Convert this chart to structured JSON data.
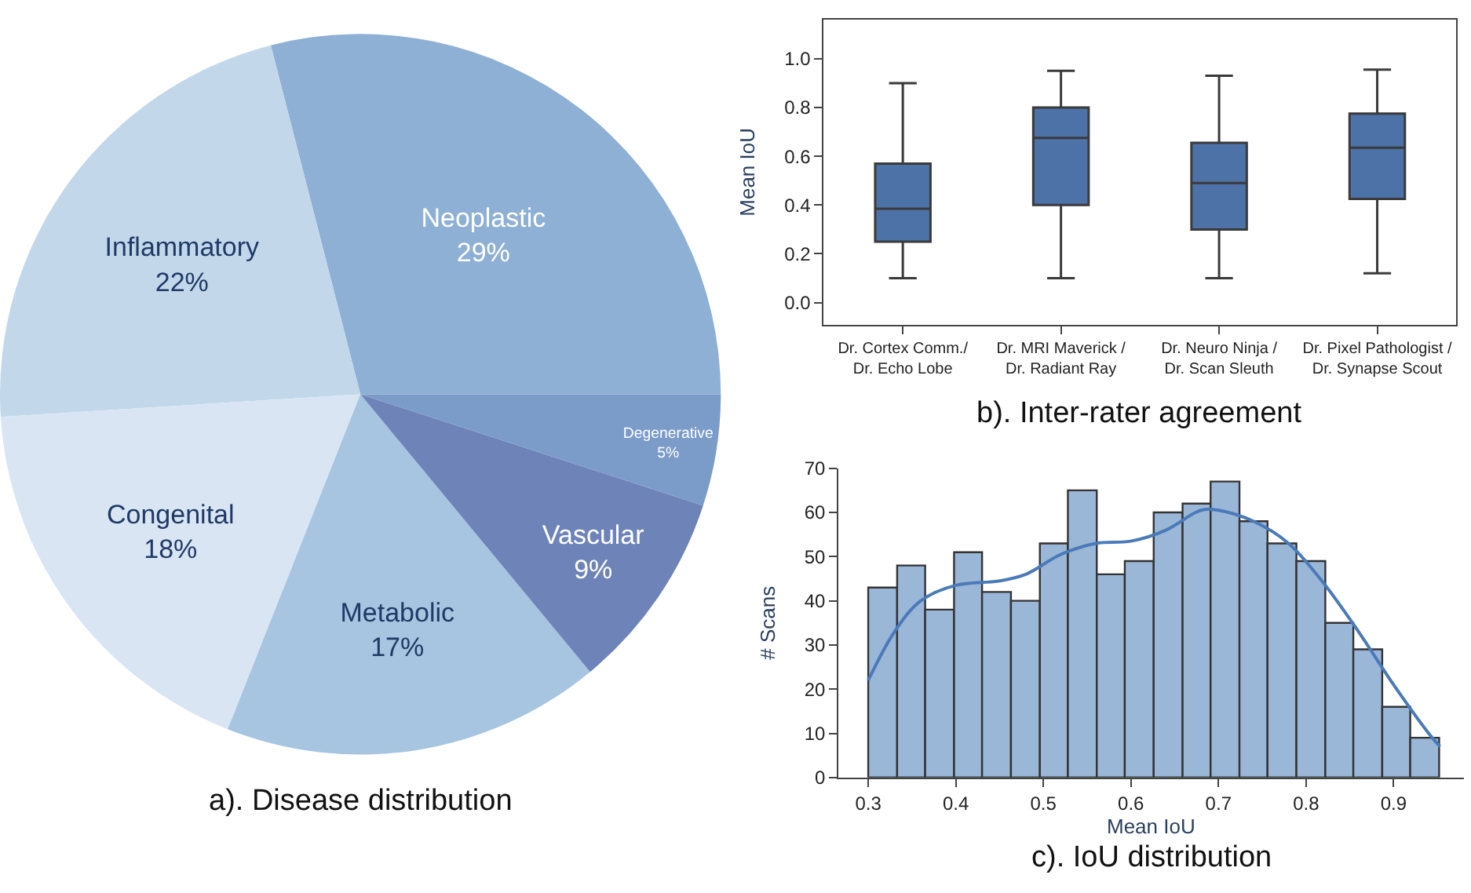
{
  "chart_data": [
    {
      "type": "pie",
      "title": "a). Disease distribution",
      "categories": [
        "Neoplastic",
        "Inflammatory",
        "Congenital",
        "Metabolic",
        "Vascular",
        "Degenerative"
      ],
      "values": [
        29,
        22,
        18,
        17,
        9,
        5
      ],
      "value_labels": [
        "29%",
        "22%",
        "18%",
        "17%",
        "9%",
        "5%"
      ],
      "colors": [
        "#8fb0d5",
        "#c2d8ea",
        "#d9e5f3",
        "#a7c4e0",
        "#6e84b8",
        "#7b9bc9"
      ]
    },
    {
      "type": "box",
      "title": "b). Inter-rater agreement",
      "ylabel": "Mean IoU",
      "categories": [
        "Dr. Cortex Comm./\nDr. Echo Lobe",
        "Dr. MRI Maverick /\nDr. Radiant Ray",
        "Dr. Neuro Ninja /\nDr. Scan Sleuth",
        "Dr. Pixel Pathologist /\nDr. Synapse Scout"
      ],
      "color": "#4c72a8",
      "boxes": [
        {
          "low": 0.1,
          "q1": 0.25,
          "median": 0.385,
          "q3": 0.57,
          "high": 0.9
        },
        {
          "low": 0.1,
          "q1": 0.4,
          "median": 0.675,
          "q3": 0.8,
          "high": 0.95
        },
        {
          "low": 0.1,
          "q1": 0.3,
          "median": 0.49,
          "q3": 0.655,
          "high": 0.93
        },
        {
          "low": 0.12,
          "q1": 0.425,
          "median": 0.635,
          "q3": 0.775,
          "high": 0.955
        }
      ],
      "ylim": [
        -0.09,
        1.16
      ],
      "yticks": [
        {
          "value": 0,
          "label": "0.0"
        },
        0.2,
        0.4,
        0.6,
        0.8,
        {
          "value": 1,
          "label": "1.0"
        }
      ]
    },
    {
      "type": "histogram",
      "title": "c). IoU distribution",
      "xlabel": "Mean IoU",
      "ylabel": "# Scans",
      "color": "#9ab7d8",
      "bins": [
        0.3,
        0.333,
        0.365,
        0.398,
        0.43,
        0.463,
        0.496,
        0.528,
        0.561,
        0.593,
        0.626,
        0.659,
        0.691,
        0.724,
        0.756,
        0.789,
        0.822,
        0.854,
        0.887,
        0.919,
        0.952
      ],
      "values": [
        43,
        48,
        38,
        51,
        42,
        40,
        53,
        65,
        46,
        49,
        60,
        62,
        67,
        58,
        53,
        49,
        35,
        29,
        16,
        9
      ],
      "series": [
        {
          "type": "line",
          "color": "#4a7ab8",
          "x": [
            0.3,
            0.33,
            0.36,
            0.4,
            0.45,
            0.48,
            0.52,
            0.56,
            0.6,
            0.64,
            0.68,
            0.7,
            0.74,
            0.78,
            0.82,
            0.86,
            0.9,
            0.94,
            0.953
          ],
          "values": [
            22,
            33,
            40,
            43.5,
            44.5,
            46,
            50.5,
            53,
            53.5,
            56,
            60.5,
            60.5,
            58,
            53,
            44,
            33,
            21,
            10,
            7
          ]
        }
      ],
      "xlim": [
        0.266,
        0.98
      ],
      "xticks": [
        0.3,
        0.4,
        0.5,
        0.6,
        0.7,
        0.8,
        0.9
      ],
      "ylim": [
        0,
        70
      ],
      "yticks": [
        0,
        10,
        20,
        30,
        40,
        50,
        60,
        70
      ]
    }
  ]
}
